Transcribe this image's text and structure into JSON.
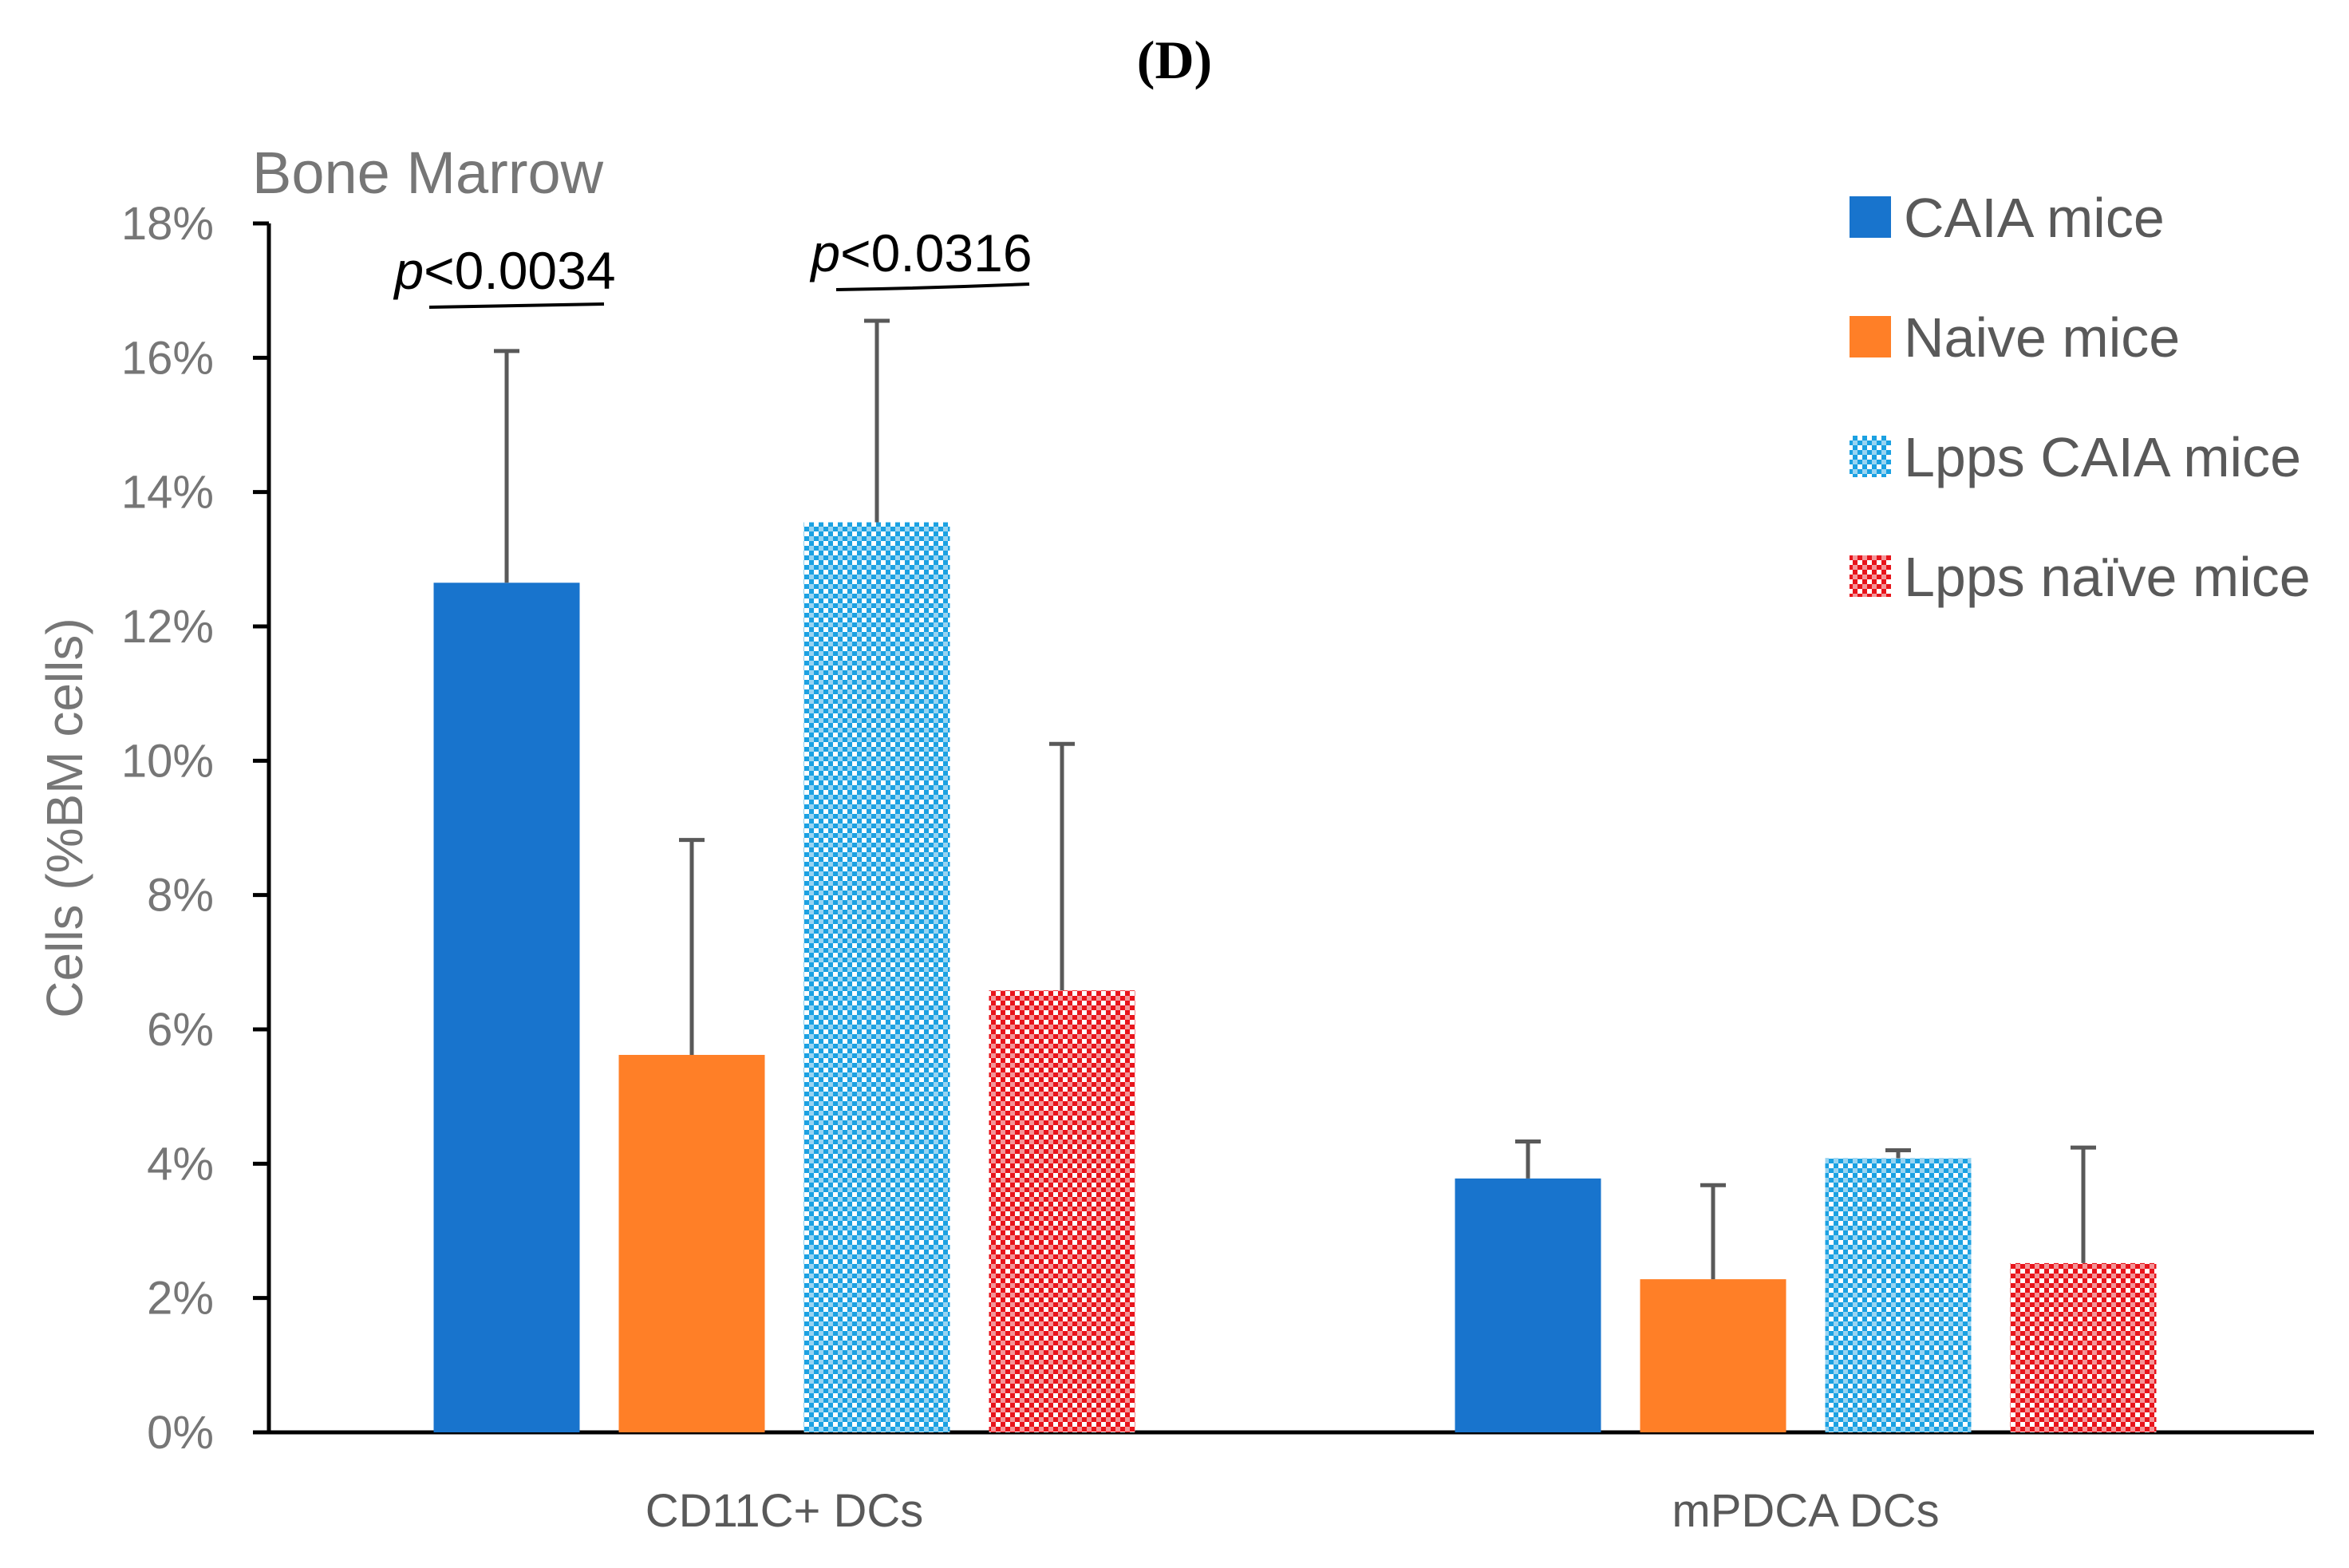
{
  "panel_label": "(D)",
  "chart_data": {
    "type": "bar",
    "subtitle": "Bone Marrow",
    "title": "",
    "xlabel": "",
    "ylabel": "Cells (%BM cells)",
    "ylim": [
      0,
      0.18
    ],
    "y_tick_labels": [
      "0%",
      "2%",
      "4%",
      "6%",
      "8%",
      "10%",
      "12%",
      "14%",
      "16%",
      "18%"
    ],
    "grid": false,
    "legend_position": "top-right",
    "categories": [
      "CD11C+ DCs",
      "mPDCA DCs"
    ],
    "series": [
      {
        "name": "CAIA mice",
        "values": [
          0.1265,
          0.0378
        ],
        "errors": [
          0.0345,
          0.0055
        ],
        "color": "#1874CD",
        "pattern": "solid"
      },
      {
        "name": "Naive mice",
        "values": [
          0.0562,
          0.0228
        ],
        "errors": [
          0.032,
          0.014
        ],
        "color": "#FF7F27",
        "pattern": "solid"
      },
      {
        "name": "Lpps CAIA mice",
        "values": [
          0.1355,
          0.0408
        ],
        "errors": [
          0.03,
          0.0012
        ],
        "color": "#1BA1E2",
        "pattern": "checker"
      },
      {
        "name": "Lpps naïve mice",
        "values": [
          0.0658,
          0.0252
        ],
        "errors": [
          0.0367,
          0.0172
        ],
        "color": "#E8141B",
        "pattern": "checker"
      }
    ],
    "annotations": [
      {
        "prefix": "p",
        "text": "<0.0034",
        "between": [
          "CAIA mice",
          "Naive mice"
        ],
        "category": "CD11C+ DCs"
      },
      {
        "prefix": "p",
        "text": "<0.0316",
        "between": [
          "Lpps CAIA mice",
          "Lpps naïve mice"
        ],
        "category": "CD11C+ DCs"
      }
    ],
    "error_bar_color": "#595959",
    "axis_color": "#000000"
  }
}
